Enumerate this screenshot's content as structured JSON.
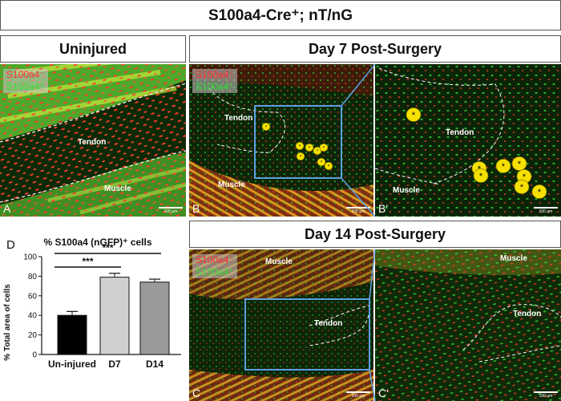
{
  "figure_title": "S100a4-Cre⁺; nT/nG",
  "headers": {
    "uninjured": "Uninjured",
    "day7": "Day 7 Post-Surgery",
    "day14": "Day 14 Post-Surgery"
  },
  "legend": {
    "red": "S100a4⁻",
    "green": "S100a4⁺"
  },
  "panels": {
    "A": {
      "label": "A",
      "tendon": "Tendon",
      "muscle": "Muscle",
      "scale": "100 µm"
    },
    "B": {
      "label": "B",
      "tendon": "Tendon",
      "muscle": "Muscle",
      "scale": "200 µm"
    },
    "Bp": {
      "label": "B'",
      "tendon": "Tendon",
      "muscle": "Muscle",
      "scale": "100 µm"
    },
    "C": {
      "label": "C",
      "tendon": "Tendon",
      "muscle": "Muscle",
      "scale": "200 µm"
    },
    "Cp": {
      "label": "C'",
      "tendon": "Tendon",
      "muscle": "Muscle",
      "scale": "100 µm"
    }
  },
  "marker": "*",
  "colors": {
    "red": "#ff3030",
    "green": "#30e030",
    "box": "#4a90d0",
    "bar_un": "#000000",
    "bar_d7": "#d0d0d0",
    "bar_d14": "#9a9a9a"
  },
  "chart_data": {
    "type": "bar",
    "panel_letter": "D",
    "title": "% S100a4 (nGFP)⁺ cells",
    "ylabel": "% Total area of cells",
    "categories": [
      "Un-injured",
      "D7",
      "D14"
    ],
    "values": [
      40,
      79,
      74
    ],
    "errors": [
      4,
      4,
      3
    ],
    "ylim": [
      0,
      100
    ],
    "yticks": [
      0,
      20,
      40,
      60,
      80,
      100
    ],
    "significance": [
      {
        "from": 0,
        "to": 2,
        "label": "***"
      },
      {
        "from": 0,
        "to": 1,
        "label": "***"
      }
    ]
  }
}
